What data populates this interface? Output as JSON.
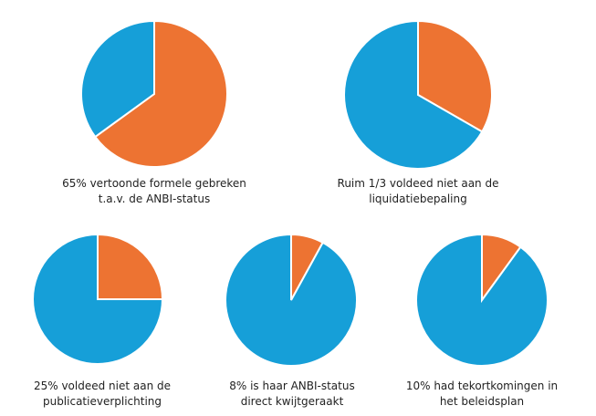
{
  "colors": {
    "highlight": "#ED7332",
    "rest": "#169FD8"
  },
  "chart_data": [
    {
      "type": "pie",
      "slices": [
        {
          "label": "highlight",
          "value": 65
        },
        {
          "label": "rest",
          "value": 35
        }
      ],
      "caption": [
        "65% vertoonde formele gebreken",
        "t.a.v. de ANBI-status"
      ]
    },
    {
      "type": "pie",
      "slices": [
        {
          "label": "highlight",
          "value": 33.3
        },
        {
          "label": "rest",
          "value": 66.7
        }
      ],
      "caption": [
        "Ruim 1/3 voldeed niet aan de",
        "liquidatiebepaling"
      ]
    },
    {
      "type": "pie",
      "slices": [
        {
          "label": "highlight",
          "value": 25
        },
        {
          "label": "rest",
          "value": 75
        }
      ],
      "caption": [
        "25% voldeed  niet aan de",
        "publicatieverplichting"
      ]
    },
    {
      "type": "pie",
      "slices": [
        {
          "label": "highlight",
          "value": 8
        },
        {
          "label": "rest",
          "value": 92
        }
      ],
      "caption": [
        "8% is haar ANBI-status",
        "direct kwijtgeraakt"
      ]
    },
    {
      "type": "pie",
      "slices": [
        {
          "label": "highlight",
          "value": 10
        },
        {
          "label": "rest",
          "value": 90
        }
      ],
      "caption": [
        "10% had tekortkomingen  in",
        "het beleidsplan"
      ]
    }
  ]
}
